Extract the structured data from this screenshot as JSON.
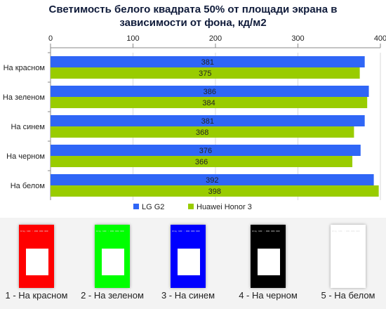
{
  "chart_data": {
    "type": "bar",
    "orientation": "horizontal",
    "title_lines": [
      "Светимость белого квадрата 50% от площади экрана в",
      "зависимости от фона, кд/м2"
    ],
    "categories": [
      "На красном",
      "На зеленом",
      "На синем",
      "На черном",
      "На белом"
    ],
    "series": [
      {
        "name": "LG G2",
        "color": "#2f66f6",
        "values": [
          381,
          386,
          381,
          376,
          392
        ]
      },
      {
        "name": "Huawei Honor 3",
        "color": "#99cc00",
        "values": [
          375,
          384,
          368,
          366,
          398
        ]
      }
    ],
    "xlim": [
      0,
      400
    ],
    "x_ticks": [
      "0",
      "100",
      "200",
      "300",
      "400"
    ],
    "axis_position": "top",
    "grid": true,
    "legend_position": "bottom"
  },
  "phones": [
    {
      "label": "1 - На красном",
      "bg": "#ff0000",
      "caption": "Gray 100 : 000 000 000"
    },
    {
      "label": "2 - На зеленом",
      "bg": "#00ff00",
      "caption": "Gray 100 : 000 000 000"
    },
    {
      "label": "3 - На синем",
      "bg": "#0000ff",
      "caption": "Gray 100 : 000 000 000"
    },
    {
      "label": "4 - На черном",
      "bg": "#000000",
      "caption": "Gray 100 : 000 000 000"
    },
    {
      "label": "5 - На белом",
      "bg": "#ffffff",
      "caption": "Gray 100 : 000 000 000"
    }
  ]
}
